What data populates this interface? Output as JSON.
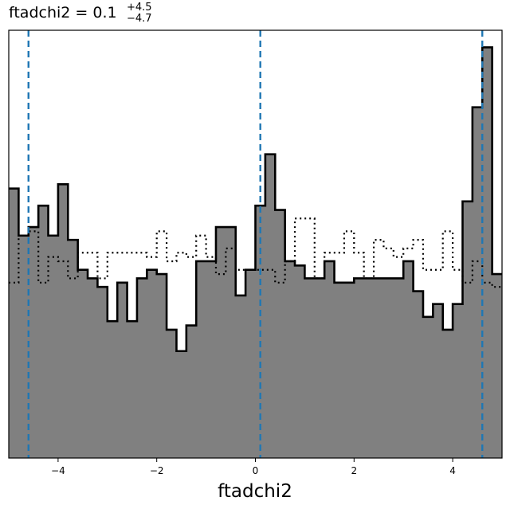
{
  "chart_data": {
    "type": "histogram",
    "title": {
      "main": "ftadchi2 = 0.1",
      "sup": "+4.5",
      "sub": "−4.7"
    },
    "xlabel": "ftadchi2",
    "ylabel": "",
    "xlim": [
      -5.0,
      5.0
    ],
    "ylim": [
      0,
      1.0
    ],
    "xticks": [
      -4,
      -2,
      0,
      2,
      4
    ],
    "xtick_labels": [
      "−4",
      "−2",
      "0",
      "2",
      "4"
    ],
    "grid": false,
    "bin_edges": [
      -5.0,
      -4.8,
      -4.6,
      -4.4,
      -4.2,
      -4.0,
      -3.8,
      -3.6,
      -3.4,
      -3.2,
      -3.0,
      -2.8,
      -2.6,
      -2.4,
      -2.2,
      -2.0,
      -1.8,
      -1.6,
      -1.4,
      -1.2,
      -1.0,
      -0.8,
      -0.6,
      -0.4,
      -0.2,
      0.0,
      0.2,
      0.4,
      0.6,
      0.8,
      1.0,
      1.2,
      1.4,
      1.6,
      1.8,
      2.0,
      2.2,
      2.4,
      2.6,
      2.8,
      3.0,
      3.2,
      3.4,
      3.6,
      3.8,
      4.0,
      4.2,
      4.4,
      4.6,
      4.8,
      5.0
    ],
    "series": [
      {
        "style": "filled",
        "fill": "#808080",
        "edge": "#000000",
        "values": [
          0.63,
          0.52,
          0.54,
          0.59,
          0.52,
          0.64,
          0.51,
          0.44,
          0.42,
          0.4,
          0.32,
          0.41,
          0.32,
          0.42,
          0.44,
          0.43,
          0.3,
          0.25,
          0.31,
          0.46,
          0.46,
          0.54,
          0.54,
          0.38,
          0.44,
          0.59,
          0.71,
          0.58,
          0.46,
          0.45,
          0.42,
          0.42,
          0.46,
          0.41,
          0.41,
          0.42,
          0.42,
          0.42,
          0.42,
          0.42,
          0.46,
          0.39,
          0.33,
          0.36,
          0.3,
          0.36,
          0.6,
          0.82,
          0.96,
          0.43
        ]
      },
      {
        "style": "dotted",
        "color": "#000000",
        "values": [
          0.41,
          0.52,
          0.53,
          0.41,
          0.47,
          0.46,
          0.42,
          0.48,
          0.48,
          0.42,
          0.48,
          0.48,
          0.48,
          0.48,
          0.47,
          0.53,
          0.46,
          0.48,
          0.47,
          0.52,
          0.47,
          0.43,
          0.49,
          0.44,
          0.44,
          0.44,
          0.44,
          0.41,
          0.46,
          0.56,
          0.56,
          0.42,
          0.48,
          0.48,
          0.53,
          0.48,
          0.42,
          0.51,
          0.49,
          0.47,
          0.49,
          0.51,
          0.44,
          0.44,
          0.53,
          0.44,
          0.41,
          0.46,
          0.41,
          0.4
        ]
      }
    ],
    "vlines": {
      "color": "#1f77b4",
      "style": "dashed",
      "x": [
        -4.6,
        0.1,
        4.6
      ]
    }
  }
}
